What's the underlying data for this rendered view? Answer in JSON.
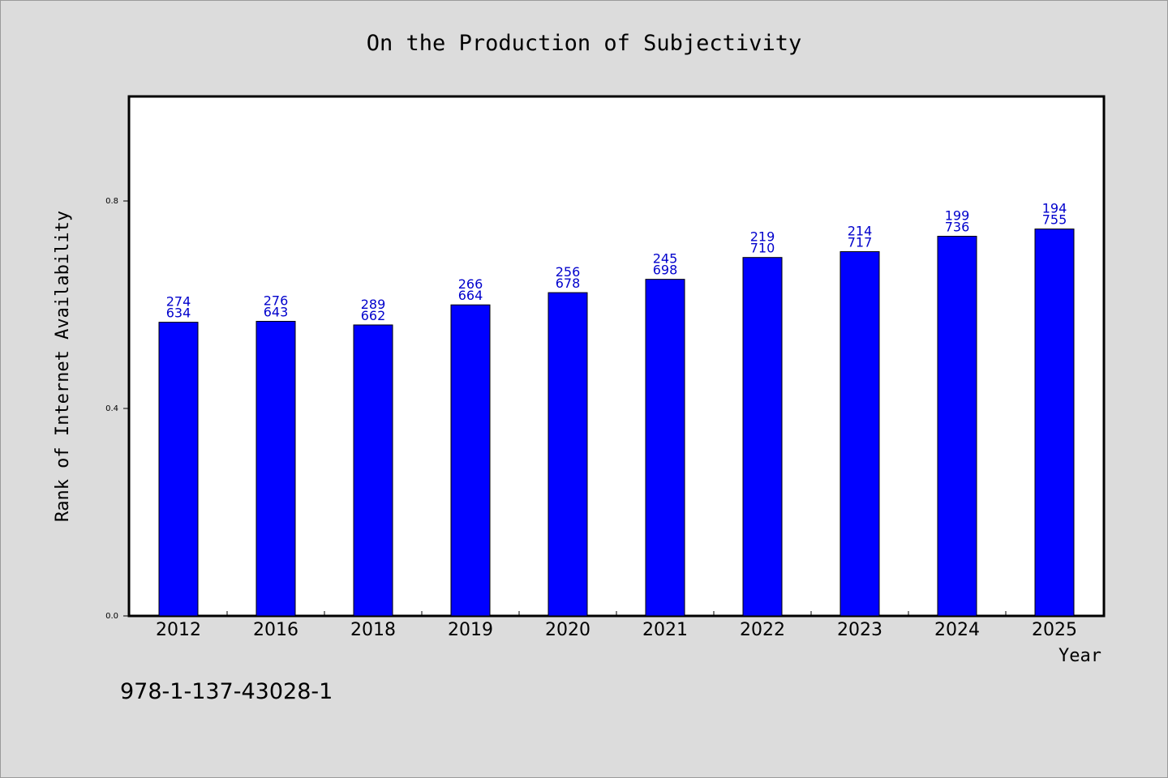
{
  "chart_data": {
    "type": "bar",
    "title": "On the Production of Subjectivity",
    "xlabel": "Year",
    "ylabel": "Rank of Internet Availability",
    "categories": [
      "2012",
      "2016",
      "2018",
      "2019",
      "2020",
      "2021",
      "2022",
      "2023",
      "2024",
      "2025"
    ],
    "values": [
      0.5662,
      0.568,
      0.561,
      0.5997,
      0.6233,
      0.649,
      0.6911,
      0.7023,
      0.732,
      0.746
    ],
    "annotations": [
      [
        "274",
        "634"
      ],
      [
        "276",
        "643"
      ],
      [
        "289",
        "662"
      ],
      [
        "266",
        "664"
      ],
      [
        "256",
        "678"
      ],
      [
        "245",
        "698"
      ],
      [
        "219",
        "710"
      ],
      [
        "214",
        "717"
      ],
      [
        "199",
        "736"
      ],
      [
        "194",
        "755"
      ]
    ],
    "yticks": [
      "0.0",
      "0.4",
      "0.8"
    ],
    "ylim": [
      0,
      1.0
    ],
    "grid": false,
    "legend": "none",
    "colors": {
      "bar": "#0000ff",
      "label": "#0000cc",
      "plot_bg": "#ffffff",
      "page_bg": "#dcdcdc"
    }
  },
  "footer": {
    "isbn": "978-1-137-43028-1"
  }
}
